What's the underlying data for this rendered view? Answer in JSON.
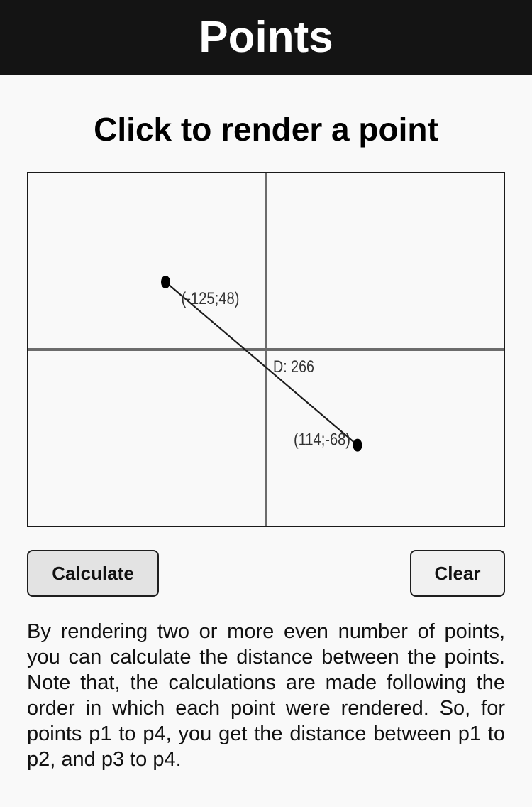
{
  "header": {
    "title": "Points",
    "background_color": "#141414",
    "title_color": "#ffffff"
  },
  "main": {
    "heading": "Click to render a point",
    "background_color": "#f9f9f9"
  },
  "canvas": {
    "points": [
      {
        "x": -125,
        "y": 48,
        "label": "(-125;48)"
      },
      {
        "x": 114,
        "y": -68,
        "label": "(114;-68)"
      }
    ],
    "distances": [
      {
        "label": "D: 266"
      }
    ]
  },
  "buttons": {
    "calculate_label": "Calculate",
    "clear_label": "Clear"
  },
  "description": "By rendering two or more even number of points, you can calculate the distance between the points. Note that, the calculations are made following the order in which each point were rendered. So, for points p1 to p4, you get the distance between p1 to p2, and p3 to p4."
}
